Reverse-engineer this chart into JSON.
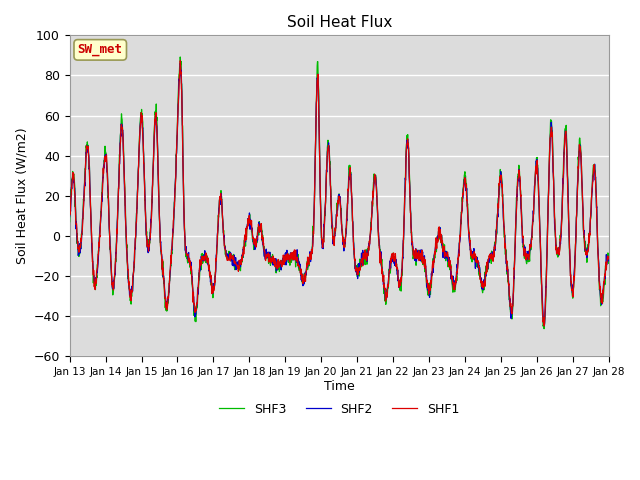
{
  "title": "Soil Heat Flux",
  "ylabel": "Soil Heat Flux (W/m2)",
  "xlabel": "Time",
  "ylim": [
    -60,
    100
  ],
  "annotation_text": "SW_met",
  "annotation_color": "#cc0000",
  "annotation_bg": "#ffffcc",
  "series_colors": [
    "#dd0000",
    "#0000cc",
    "#00bb00"
  ],
  "series_labels": [
    "SHF1",
    "SHF2",
    "SHF3"
  ],
  "x_tick_labels": [
    "Jan 13",
    "Jan 14",
    "Jan 15",
    "Jan 16",
    "Jan 17",
    "Jan 18",
    "Jan 19",
    "Jan 20",
    "Jan 21",
    "Jan 22",
    "Jan 23",
    "Jan 24",
    "Jan 25",
    "Jan 26",
    "Jan 27",
    "Jan 28"
  ],
  "background_color": "#dcdcdc",
  "grid_color": "#ffffff",
  "n_days": 15,
  "n_pts": 1800
}
